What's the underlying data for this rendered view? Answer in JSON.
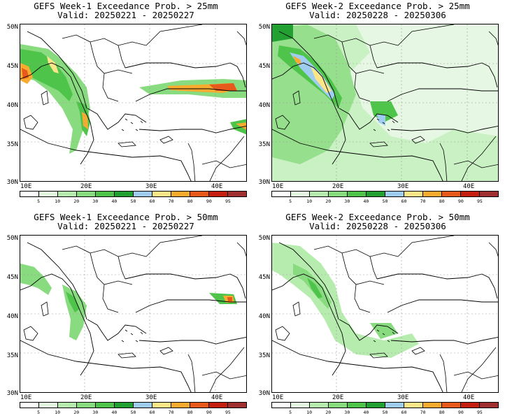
{
  "panels": [
    {
      "title": "GEFS Week-1 Exceedance Prob. > 25mm",
      "valid": "Valid: 20250221 - 20250227",
      "blobs": "w1_25"
    },
    {
      "title": "GEFS Week-2 Exceedance Prob. > 25mm",
      "valid": "Valid: 20250228 - 20250306",
      "blobs": "w2_25"
    },
    {
      "title": "GEFS Week-1 Exceedance Prob. > 50mm",
      "valid": "Valid: 20250221 - 20250227",
      "blobs": "w1_50"
    },
    {
      "title": "GEFS Week-2 Exceedance Prob. > 50mm",
      "valid": "Valid: 20250228 - 20250306",
      "blobs": "w2_50"
    }
  ],
  "lat_labels": [
    "50N",
    "45N",
    "40N",
    "35N",
    "30N"
  ],
  "lon_labels": [
    "10E",
    "20E",
    "30E",
    "40E"
  ],
  "colorbar": {
    "labels": [
      "5",
      "10",
      "20",
      "30",
      "40",
      "50",
      "60",
      "70",
      "80",
      "90",
      "95"
    ],
    "colors": [
      "#ffffff",
      "#e4f7e1",
      "#b7ecaf",
      "#88db7f",
      "#4fc44b",
      "#22a132",
      "#9fcdf0",
      "#fde58a",
      "#f9ab2f",
      "#e8591c",
      "#c41f10",
      "#a0302f"
    ]
  }
}
